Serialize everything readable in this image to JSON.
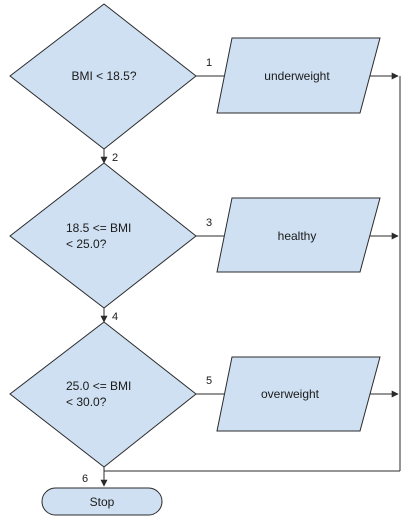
{
  "flowchart": {
    "decisions": [
      {
        "line1": "BMI < 18.5?",
        "line2": ""
      },
      {
        "line1": "18.5 <= BMI",
        "line2": "< 25.0?"
      },
      {
        "line1": "25.0 <= BMI",
        "line2": "< 30.0?"
      }
    ],
    "outputs": [
      "underweight",
      "healthy",
      "overweight"
    ],
    "terminal": "Stop",
    "edge_labels": [
      "1",
      "2",
      "3",
      "4",
      "5",
      "6"
    ],
    "colors": {
      "fill": "#cfe0f3",
      "stroke": "#2b2b2b"
    }
  }
}
